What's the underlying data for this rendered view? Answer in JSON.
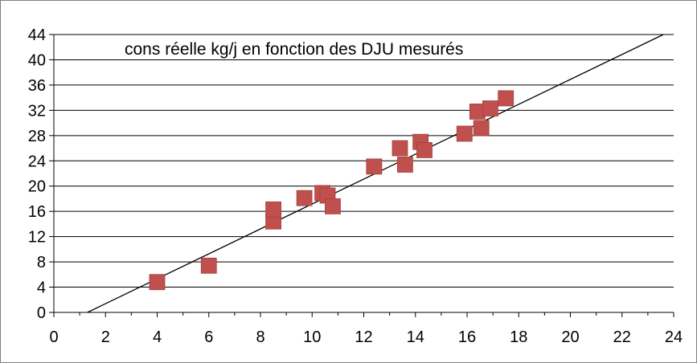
{
  "chart_data": {
    "type": "scatter",
    "title": "cons réelle kg/j en fonction des DJU mesurés",
    "xlabel": "",
    "ylabel": "",
    "xlim": [
      0,
      24
    ],
    "ylim": [
      0,
      44
    ],
    "x_ticks": [
      0,
      2,
      4,
      6,
      8,
      10,
      12,
      14,
      16,
      18,
      20,
      22,
      24
    ],
    "y_ticks": [
      0,
      4,
      8,
      12,
      16,
      20,
      24,
      28,
      32,
      36,
      40,
      44
    ],
    "grid": "horizontal",
    "legend": "none",
    "series": [
      {
        "marker": "square",
        "color": "#c0504d",
        "points": [
          {
            "x": 4.0,
            "y": 4.8
          },
          {
            "x": 6.0,
            "y": 7.4
          },
          {
            "x": 8.5,
            "y": 14.4
          },
          {
            "x": 8.5,
            "y": 16.3
          },
          {
            "x": 9.7,
            "y": 18.1
          },
          {
            "x": 10.4,
            "y": 18.9
          },
          {
            "x": 10.6,
            "y": 18.5
          },
          {
            "x": 10.8,
            "y": 16.8
          },
          {
            "x": 12.4,
            "y": 23.1
          },
          {
            "x": 13.4,
            "y": 26.0
          },
          {
            "x": 13.6,
            "y": 23.4
          },
          {
            "x": 14.2,
            "y": 27.0
          },
          {
            "x": 14.35,
            "y": 25.7
          },
          {
            "x": 15.9,
            "y": 28.3
          },
          {
            "x": 16.4,
            "y": 31.8
          },
          {
            "x": 16.55,
            "y": 29.2
          },
          {
            "x": 16.9,
            "y": 32.3
          },
          {
            "x": 17.5,
            "y": 33.9
          }
        ]
      }
    ],
    "trendline": {
      "type": "linear",
      "color": "#000000",
      "from": {
        "x": 1.3,
        "y": 0
      },
      "to": {
        "x": 23.6,
        "y": 44
      }
    }
  }
}
